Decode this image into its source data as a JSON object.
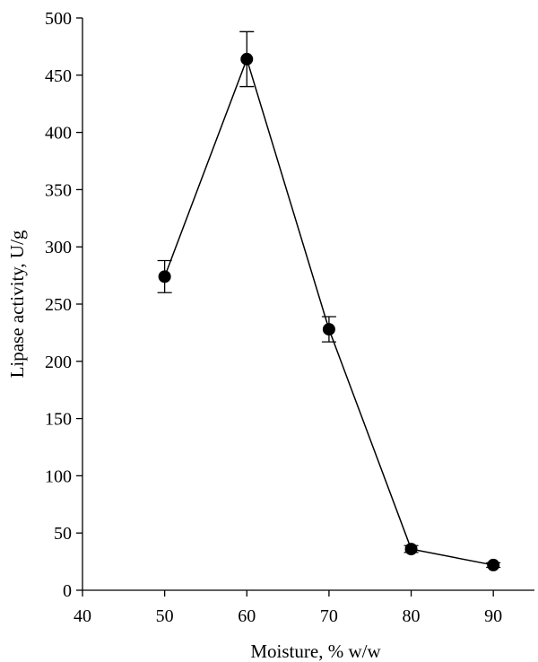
{
  "chart_data": {
    "type": "line",
    "title": "",
    "xlabel": "Moisture, % w/w",
    "ylabel": "Lipase activity, U/g",
    "xlim": [
      40,
      95
    ],
    "ylim": [
      0,
      500
    ],
    "xticks": [
      40,
      50,
      60,
      70,
      80,
      90
    ],
    "yticks": [
      0,
      50,
      100,
      150,
      200,
      250,
      300,
      350,
      400,
      450,
      500
    ],
    "grid": false,
    "legend": "none",
    "series": [
      {
        "x": [
          50,
          60,
          70,
          80,
          90
        ],
        "y": [
          274,
          464,
          228,
          36,
          22
        ],
        "error": [
          14,
          24,
          11,
          3,
          2
        ],
        "marker": "filled-circle",
        "color": "#000000"
      }
    ]
  }
}
